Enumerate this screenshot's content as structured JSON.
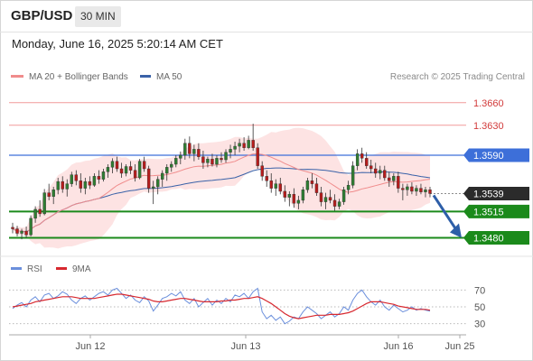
{
  "header": {
    "symbol": "GBP/USD",
    "timeframe": "30 MIN",
    "datetime": "Monday, June 16, 2025 5:20:14 AM CET"
  },
  "legend": {
    "ma20_label": "MA 20 + Bollinger Bands",
    "ma50_label": "MA 50",
    "copyright": "Research © 2025 Trading Central",
    "rsi_label": "RSI",
    "rsi_ma_label": "9MA"
  },
  "colors": {
    "up_candle": "#2e7d32",
    "down_candle": "#b71c1c",
    "ma20": "#f08c8c",
    "bollinger_fill": "#fde2e2",
    "ma50": "#3a62a8",
    "resistance": "#f19a9a",
    "pivot": "#3d6fd9",
    "support": "#1b8a1b",
    "price_tag": "#2b2b2b",
    "arrow": "#2d5ea8",
    "rsi": "#6b8fdc",
    "rsi_ma": "#d7282f"
  },
  "chart_data": {
    "type": "candlestick",
    "instrument": "GBP/USD",
    "interval": "30 MIN",
    "x_tick_labels": [
      "Jun 12",
      "Jun 13",
      "Jun 16",
      "Jun 25"
    ],
    "ylim": [
      1.3465,
      1.3685
    ],
    "levels": [
      {
        "label": "1.3660",
        "value": 1.366,
        "type": "resistance"
      },
      {
        "label": "1.3630",
        "value": 1.363,
        "type": "resistance"
      },
      {
        "label": "1.3590",
        "value": 1.359,
        "type": "pivot"
      },
      {
        "label": "1.3539",
        "value": 1.3539,
        "type": "last"
      },
      {
        "label": "1.3515",
        "value": 1.3515,
        "type": "support"
      },
      {
        "label": "1.3480",
        "value": 1.348,
        "type": "support"
      }
    ],
    "forecast": {
      "from": 1.3539,
      "to": 1.348,
      "direction": "down"
    },
    "candles": [
      [
        1.3494,
        1.35,
        1.3486,
        1.3492
      ],
      [
        1.3492,
        1.3496,
        1.3482,
        1.3486
      ],
      [
        1.3486,
        1.3492,
        1.3478,
        1.3489
      ],
      [
        1.3489,
        1.3495,
        1.348,
        1.3484
      ],
      [
        1.3484,
        1.351,
        1.3482,
        1.3506
      ],
      [
        1.3506,
        1.3522,
        1.35,
        1.3518
      ],
      [
        1.3518,
        1.353,
        1.3508,
        1.3512
      ],
      [
        1.3512,
        1.3545,
        1.351,
        1.354
      ],
      [
        1.354,
        1.3552,
        1.353,
        1.3535
      ],
      [
        1.3535,
        1.3548,
        1.3525,
        1.3544
      ],
      [
        1.3544,
        1.356,
        1.3538,
        1.3555
      ],
      [
        1.3555,
        1.3562,
        1.354,
        1.3545
      ],
      [
        1.3545,
        1.3558,
        1.3535,
        1.3552
      ],
      [
        1.3552,
        1.3568,
        1.3548,
        1.3564
      ],
      [
        1.3564,
        1.357,
        1.355,
        1.3556
      ],
      [
        1.3556,
        1.3566,
        1.354,
        1.3546
      ],
      [
        1.3546,
        1.356,
        1.3538,
        1.3555
      ],
      [
        1.3555,
        1.3562,
        1.3545,
        1.355
      ],
      [
        1.355,
        1.3566,
        1.3548,
        1.3562
      ],
      [
        1.3562,
        1.357,
        1.3552,
        1.3558
      ],
      [
        1.3558,
        1.3572,
        1.3555,
        1.3568
      ],
      [
        1.3568,
        1.3578,
        1.356,
        1.3574
      ],
      [
        1.3574,
        1.3586,
        1.3566,
        1.3582
      ],
      [
        1.3582,
        1.3588,
        1.3568,
        1.3572
      ],
      [
        1.3572,
        1.358,
        1.356,
        1.3566
      ],
      [
        1.3566,
        1.3578,
        1.3562,
        1.3575
      ],
      [
        1.3575,
        1.3582,
        1.3565,
        1.357
      ],
      [
        1.357,
        1.3578,
        1.3555,
        1.356
      ],
      [
        1.356,
        1.3585,
        1.3558,
        1.3582
      ],
      [
        1.3582,
        1.3588,
        1.3568,
        1.3572
      ],
      [
        1.3572,
        1.3576,
        1.354,
        1.3546
      ],
      [
        1.3546,
        1.3556,
        1.3525,
        1.3548
      ],
      [
        1.3548,
        1.3562,
        1.3538,
        1.3558
      ],
      [
        1.3558,
        1.357,
        1.3548,
        1.3566
      ],
      [
        1.3566,
        1.3578,
        1.3556,
        1.3574
      ],
      [
        1.3574,
        1.3582,
        1.3568,
        1.3578
      ],
      [
        1.3578,
        1.359,
        1.3574,
        1.3586
      ],
      [
        1.3586,
        1.3595,
        1.3578,
        1.359
      ],
      [
        1.359,
        1.3612,
        1.3584,
        1.3606
      ],
      [
        1.3606,
        1.3615,
        1.3586,
        1.3592
      ],
      [
        1.3592,
        1.3604,
        1.3582,
        1.3598
      ],
      [
        1.3598,
        1.3606,
        1.3584,
        1.3588
      ],
      [
        1.3588,
        1.3596,
        1.3572,
        1.358
      ],
      [
        1.358,
        1.3588,
        1.3574,
        1.3585
      ],
      [
        1.3585,
        1.3592,
        1.3575,
        1.3578
      ],
      [
        1.3578,
        1.359,
        1.3574,
        1.3586
      ],
      [
        1.3586,
        1.3594,
        1.358,
        1.3584
      ],
      [
        1.3584,
        1.3598,
        1.358,
        1.3594
      ],
      [
        1.3594,
        1.3604,
        1.3586,
        1.3598
      ],
      [
        1.3598,
        1.3608,
        1.359,
        1.3602
      ],
      [
        1.3602,
        1.3612,
        1.3594,
        1.3606
      ],
      [
        1.3606,
        1.3614,
        1.3596,
        1.36
      ],
      [
        1.36,
        1.3616,
        1.3598,
        1.361
      ],
      [
        1.361,
        1.3632,
        1.3596,
        1.36
      ],
      [
        1.36,
        1.3606,
        1.3572,
        1.3576
      ],
      [
        1.3576,
        1.3582,
        1.3556,
        1.3562
      ],
      [
        1.3562,
        1.357,
        1.3548,
        1.3556
      ],
      [
        1.3556,
        1.3566,
        1.354,
        1.3546
      ],
      [
        1.3546,
        1.3558,
        1.3536,
        1.3552
      ],
      [
        1.3552,
        1.356,
        1.3538,
        1.3542
      ],
      [
        1.3542,
        1.355,
        1.3528,
        1.3534
      ],
      [
        1.3534,
        1.3542,
        1.3522,
        1.3538
      ],
      [
        1.3538,
        1.3546,
        1.352,
        1.3526
      ],
      [
        1.3526,
        1.3536,
        1.3518,
        1.353
      ],
      [
        1.353,
        1.3548,
        1.3526,
        1.3544
      ],
      [
        1.3544,
        1.356,
        1.354,
        1.3556
      ],
      [
        1.3556,
        1.3566,
        1.3546,
        1.3552
      ],
      [
        1.3552,
        1.356,
        1.3536,
        1.354
      ],
      [
        1.354,
        1.3548,
        1.3522,
        1.3528
      ],
      [
        1.3528,
        1.354,
        1.3518,
        1.3534
      ],
      [
        1.3534,
        1.3544,
        1.3526,
        1.353
      ],
      [
        1.353,
        1.3538,
        1.3516,
        1.3522
      ],
      [
        1.3522,
        1.3532,
        1.3518,
        1.3528
      ],
      [
        1.3528,
        1.3548,
        1.3524,
        1.3544
      ],
      [
        1.3544,
        1.3556,
        1.3538,
        1.355
      ],
      [
        1.355,
        1.3582,
        1.3546,
        1.3576
      ],
      [
        1.3576,
        1.3598,
        1.357,
        1.3592
      ],
      [
        1.3592,
        1.36,
        1.358,
        1.3586
      ],
      [
        1.3586,
        1.3594,
        1.3572,
        1.3576
      ],
      [
        1.3576,
        1.3584,
        1.3566,
        1.3572
      ],
      [
        1.3572,
        1.358,
        1.356,
        1.3566
      ],
      [
        1.3566,
        1.3576,
        1.3558,
        1.357
      ],
      [
        1.357,
        1.3576,
        1.3556,
        1.356
      ],
      [
        1.356,
        1.3568,
        1.3548,
        1.3556
      ],
      [
        1.3556,
        1.3566,
        1.355,
        1.3562
      ],
      [
        1.3562,
        1.3568,
        1.354,
        1.3546
      ],
      [
        1.3546,
        1.3552,
        1.353,
        1.3544
      ],
      [
        1.3544,
        1.3552,
        1.3536,
        1.3548
      ],
      [
        1.3548,
        1.3554,
        1.3538,
        1.3542
      ],
      [
        1.3542,
        1.355,
        1.3536,
        1.3546
      ],
      [
        1.3546,
        1.3552,
        1.3538,
        1.3541
      ],
      [
        1.3541,
        1.3548,
        1.3534,
        1.3544
      ],
      [
        1.3544,
        1.3548,
        1.3534,
        1.3539
      ]
    ],
    "rsi_levels": [
      70,
      50,
      30
    ],
    "rsi": [
      48,
      52,
      55,
      50,
      58,
      62,
      56,
      64,
      66,
      60,
      63,
      68,
      65,
      58,
      54,
      60,
      63,
      58,
      62,
      66,
      68,
      64,
      70,
      72,
      66,
      60,
      64,
      58,
      55,
      62,
      57,
      45,
      52,
      60,
      62,
      66,
      63,
      68,
      58,
      54,
      60,
      50,
      55,
      60,
      52,
      58,
      54,
      60,
      56,
      64,
      62,
      66,
      60,
      68,
      72,
      44,
      36,
      40,
      34,
      38,
      30,
      33,
      38,
      36,
      44,
      50,
      46,
      42,
      36,
      40,
      44,
      38,
      42,
      50,
      46,
      58,
      66,
      70,
      62,
      56,
      52,
      58,
      50,
      46,
      52,
      48,
      44,
      46,
      50,
      46,
      48,
      46,
      45
    ],
    "rsi_ma": [
      50,
      51,
      52,
      53,
      54,
      56,
      57,
      58,
      59,
      60,
      61,
      62,
      62,
      62,
      61,
      60,
      60,
      60,
      60,
      61,
      62,
      63,
      64,
      65,
      65,
      64,
      63,
      62,
      61,
      60,
      59,
      57,
      56,
      56,
      57,
      58,
      59,
      60,
      60,
      59,
      58,
      57,
      56,
      56,
      56,
      56,
      57,
      57,
      58,
      58,
      59,
      60,
      60,
      61,
      62,
      60,
      57,
      54,
      50,
      46,
      42,
      39,
      37,
      36,
      37,
      38,
      39,
      40,
      40,
      40,
      41,
      41,
      41,
      42,
      43,
      45,
      48,
      51,
      54,
      56,
      56,
      56,
      55,
      54,
      53,
      51,
      50,
      49,
      48,
      47,
      47,
      47,
      46
    ]
  }
}
